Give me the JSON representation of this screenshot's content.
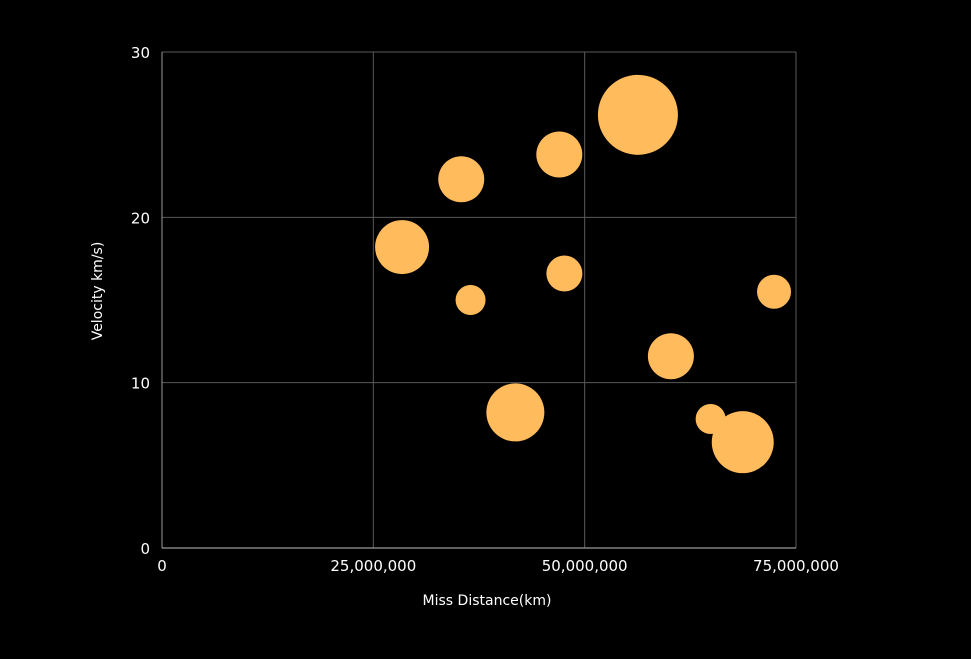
{
  "colors": {
    "background": "#000000",
    "grid": "#5a5a5a",
    "axis": "#9a9a9a",
    "bubble": "#ffbb5c",
    "text": "#ffffff"
  },
  "chart_data": {
    "type": "scatter",
    "variant": "bubble",
    "title": "",
    "xlabel": "Miss Distance(km)",
    "ylabel": "Velocity km/s)",
    "xlim": [
      0,
      75000000
    ],
    "ylim": [
      0,
      30
    ],
    "x_ticks": [
      0,
      25000000,
      50000000,
      75000000
    ],
    "x_tick_labels": [
      "0",
      "25,000,000",
      "50,000,000",
      "75,000,000"
    ],
    "y_ticks": [
      0,
      10,
      20,
      30
    ],
    "y_tick_labels": [
      "0",
      "10",
      "20",
      "30"
    ],
    "grid": true,
    "legend": "none",
    "size_note": "relative bubble size",
    "points": [
      {
        "x": 28400000,
        "y": 18.2,
        "size": 27
      },
      {
        "x": 35400000,
        "y": 22.3,
        "size": 23
      },
      {
        "x": 36500000,
        "y": 15.0,
        "size": 15
      },
      {
        "x": 41800000,
        "y": 8.2,
        "size": 29
      },
      {
        "x": 47000000,
        "y": 23.8,
        "size": 23
      },
      {
        "x": 47600000,
        "y": 16.6,
        "size": 18
      },
      {
        "x": 56300000,
        "y": 26.2,
        "size": 40
      },
      {
        "x": 60200000,
        "y": 11.6,
        "size": 23
      },
      {
        "x": 64900000,
        "y": 7.8,
        "size": 15
      },
      {
        "x": 68700000,
        "y": 6.4,
        "size": 31
      },
      {
        "x": 72400000,
        "y": 15.5,
        "size": 17
      }
    ]
  }
}
